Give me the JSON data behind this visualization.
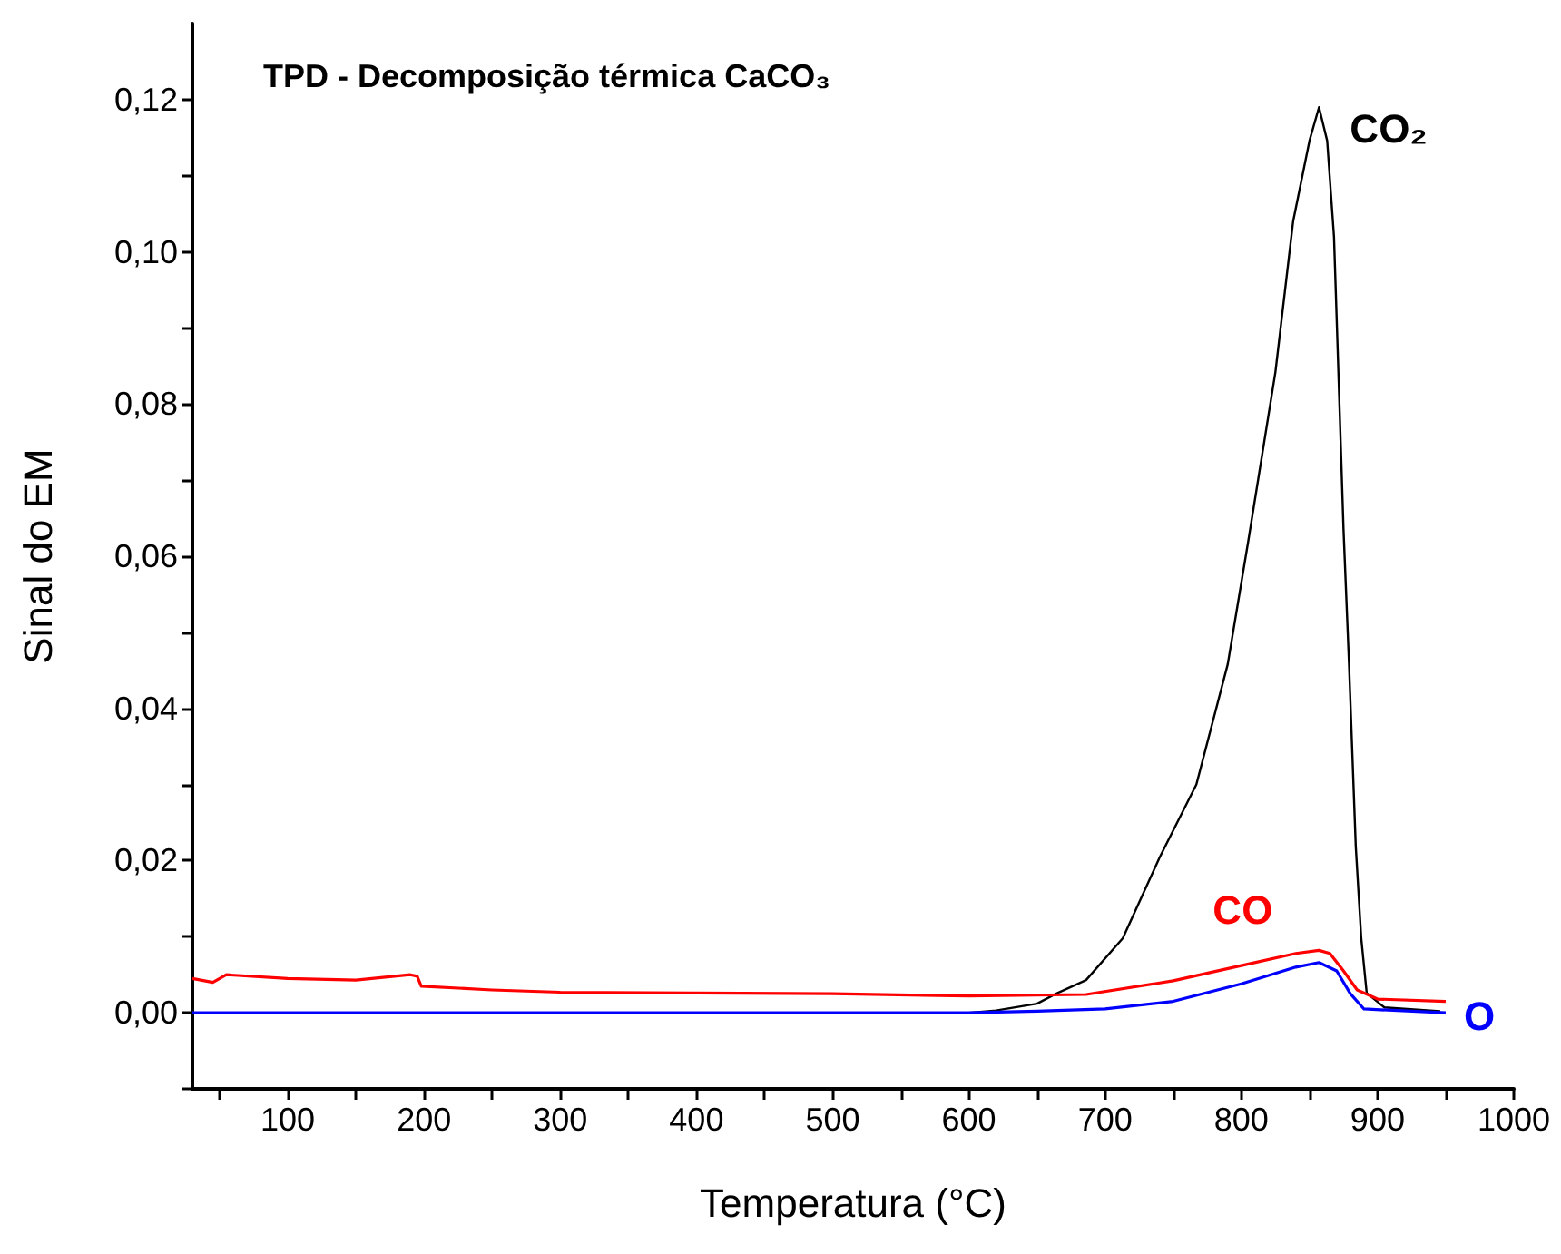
{
  "chart_data": {
    "type": "line",
    "title": "TPD - Decomposição térmica CaCO₃",
    "xlabel": "Temperatura (°C)",
    "ylabel": "Sinal do EM",
    "xlim": [
      30,
      1000
    ],
    "xticks": [
      {
        "value": 50,
        "label": null
      },
      100,
      {
        "value": 150,
        "label": null
      },
      200,
      {
        "value": 250,
        "label": null
      },
      300,
      {
        "value": 350,
        "label": null
      },
      400,
      {
        "value": 450,
        "label": null
      },
      500,
      {
        "value": 550,
        "label": null
      },
      600,
      {
        "value": 650,
        "label": null
      },
      700,
      {
        "value": 750,
        "label": null
      },
      800,
      {
        "value": 850,
        "label": null
      },
      900,
      {
        "value": 950,
        "label": null
      },
      1000
    ],
    "ylim": [
      -0.01,
      0.13
    ],
    "yticks": [
      {
        "value": -0.01,
        "label": null
      },
      {
        "value": 0,
        "label": "0,00"
      },
      {
        "value": 0.01,
        "label": null
      },
      {
        "value": 0.02,
        "label": "0,02"
      },
      {
        "value": 0.03,
        "label": null
      },
      {
        "value": 0.04,
        "label": "0,04"
      },
      {
        "value": 0.05,
        "label": null
      },
      {
        "value": 0.06,
        "label": "0,06"
      },
      {
        "value": 0.07,
        "label": null
      },
      {
        "value": 0.08,
        "label": "0,08"
      },
      {
        "value": 0.09,
        "label": null
      },
      {
        "value": 0.1,
        "label": "0,10"
      },
      {
        "value": 0.11,
        "label": null
      },
      {
        "value": 0.12,
        "label": "0,12"
      }
    ],
    "grid": false,
    "legend": false,
    "marker": "none",
    "line_style": "solid",
    "series": [
      {
        "name": "CO₂",
        "color": "#000000",
        "x": [
          30,
          200,
          400,
          600,
          620,
          650,
          664,
          686,
          713,
          740,
          767,
          790,
          805,
          825,
          838,
          850,
          857,
          863,
          868,
          875,
          879,
          884,
          888,
          892,
          905,
          946
        ],
        "values": [
          0,
          0,
          0,
          0,
          0.0003,
          0.0012,
          0.0025,
          0.0043,
          0.0098,
          0.0204,
          0.03,
          0.0458,
          0.0619,
          0.0842,
          0.104,
          0.1146,
          0.119,
          0.1146,
          0.102,
          0.0635,
          0.046,
          0.0218,
          0.0098,
          0.0026,
          0.0007,
          0.0002
        ]
      },
      {
        "name": "CO",
        "color": "#ff0000",
        "x": [
          30,
          45,
          55,
          100,
          150,
          190,
          195,
          198,
          250,
          300,
          400,
          500,
          600,
          686,
          750,
          800,
          840,
          857,
          865,
          875,
          885,
          900,
          950
        ],
        "values": [
          0.0045,
          0.004,
          0.005,
          0.0045,
          0.0043,
          0.005,
          0.0048,
          0.0035,
          0.003,
          0.0027,
          0.0026,
          0.0025,
          0.0022,
          0.0024,
          0.0042,
          0.0062,
          0.0078,
          0.0082,
          0.0078,
          0.0055,
          0.003,
          0.0018,
          0.0015
        ]
      },
      {
        "name": "O",
        "color": "#0000ff",
        "x": [
          30,
          200,
          400,
          600,
          650,
          700,
          750,
          800,
          840,
          857,
          870,
          880,
          890,
          950
        ],
        "values": [
          0,
          0,
          0,
          0,
          0.0002,
          0.0005,
          0.0015,
          0.0038,
          0.006,
          0.0066,
          0.0055,
          0.0025,
          0.0005,
          0
        ]
      }
    ]
  }
}
